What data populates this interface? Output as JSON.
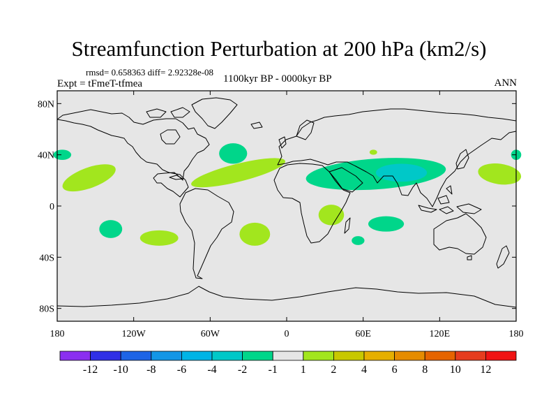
{
  "title": "Streamfunction Perturbation at 200 hPa (km2/s)",
  "stats": "rmsd= 0.658363 diff= 2.92328e-08",
  "experiment": "Expt = tFmeT-tfmea",
  "period": "1100kyr BP - 0000kyr BP",
  "season": "ANN",
  "map": {
    "lon_range": [
      -180,
      180
    ],
    "lat_range": [
      -90,
      90
    ],
    "ocean_color": "#e6e6e6",
    "lat_ticks": [
      {
        "value": 80,
        "label": "80N"
      },
      {
        "value": 40,
        "label": "40N"
      },
      {
        "value": 0,
        "label": "0"
      },
      {
        "value": -40,
        "label": "40S"
      },
      {
        "value": -80,
        "label": "80S"
      }
    ],
    "lon_ticks": [
      {
        "value": -180,
        "label": "180"
      },
      {
        "value": -120,
        "label": "120W"
      },
      {
        "value": -60,
        "label": "60W"
      },
      {
        "value": 0,
        "label": "0"
      },
      {
        "value": 60,
        "label": "60E"
      },
      {
        "value": 120,
        "label": "120E"
      },
      {
        "value": 180,
        "label": "180"
      }
    ],
    "anomalies": [
      {
        "name": "anomaly-negative-w-atlantic",
        "lon": -42,
        "lat": 41,
        "rx": 11,
        "ry": 8,
        "color": "#00d68a"
      },
      {
        "name": "anomaly-negative-nw-pacific-edge",
        "lon": -176,
        "lat": 40,
        "rx": 7,
        "ry": 4,
        "color": "#00d68a"
      },
      {
        "name": "anomaly-negative-ne-pacific-edge",
        "lon": 180,
        "lat": 40,
        "rx": 4,
        "ry": 4,
        "color": "#00d68a"
      },
      {
        "name": "anomaly-negative-africa-asia-band",
        "lon": 70,
        "lat": 25,
        "rx": 55,
        "ry": 12,
        "rot": -4,
        "color": "#00d68a"
      },
      {
        "name": "anomaly-stronger-negative-tibet",
        "lon": 90,
        "lat": 26,
        "rx": 20,
        "ry": 7,
        "color": "#00c8c8"
      },
      {
        "name": "anomaly-negative-s-pacific",
        "lon": -138,
        "lat": -18,
        "rx": 9,
        "ry": 7,
        "color": "#00d68a"
      },
      {
        "name": "anomaly-negative-s-indian-ocean",
        "lon": 78,
        "lat": -14,
        "rx": 14,
        "ry": 6,
        "color": "#00d68a"
      },
      {
        "name": "anomaly-negative-madagascar-south",
        "lon": 56,
        "lat": -27,
        "rx": 5,
        "ry": 3.5,
        "color": "#00d68a"
      },
      {
        "name": "anomaly-positive-e-pacific",
        "lon": -155,
        "lat": 22,
        "rx": 22,
        "ry": 8,
        "rot": -20,
        "color": "#a2e61e"
      },
      {
        "name": "anomaly-positive-atlantic-band",
        "lon": -38,
        "lat": 26,
        "rx": 38,
        "ry": 7,
        "rot": -14,
        "color": "#a2e61e"
      },
      {
        "name": "anomaly-positive-s-pacific",
        "lon": -100,
        "lat": -25,
        "rx": 15,
        "ry": 6,
        "color": "#a2e61e"
      },
      {
        "name": "anomaly-positive-s-atlantic",
        "lon": -25,
        "lat": -22,
        "rx": 12,
        "ry": 9,
        "color": "#a2e61e"
      },
      {
        "name": "anomaly-positive-e-africa",
        "lon": 35,
        "lat": -7,
        "rx": 10,
        "ry": 8,
        "color": "#a2e61e"
      },
      {
        "name": "anomaly-positive-nw-pacific",
        "lon": 167,
        "lat": 25,
        "rx": 17,
        "ry": 8,
        "rot": 8,
        "color": "#a2e61e"
      },
      {
        "name": "anomaly-positive-central-asia",
        "lon": 68,
        "lat": 42,
        "rx": 3,
        "ry": 2,
        "color": "#a2e61e"
      }
    ]
  },
  "colorbar": {
    "colors": [
      "#8b2ff0",
      "#3030e6",
      "#1e64e6",
      "#1496e6",
      "#00b4e6",
      "#00c8c8",
      "#00d68a",
      "#e6e6e6",
      "#a2e61e",
      "#c8c800",
      "#e6af00",
      "#e68c00",
      "#e66400",
      "#e63c1e",
      "#f01414"
    ],
    "labels": [
      "-12",
      "-10",
      "-8",
      "-6",
      "-4",
      "-2",
      "-1",
      "1",
      "2",
      "4",
      "6",
      "8",
      "10",
      "12"
    ]
  }
}
